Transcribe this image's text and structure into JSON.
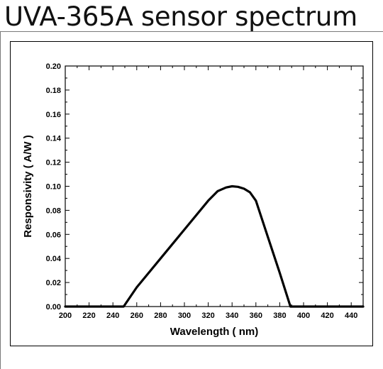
{
  "page": {
    "title": "UVA-365A sensor spectrum"
  },
  "chart_data": {
    "type": "line",
    "title": "",
    "xlabel": "Wavelength ( nm)",
    "ylabel": "Responsivity ( A/W )",
    "xlim": [
      200,
      450
    ],
    "ylim": [
      0.0,
      0.2
    ],
    "x_ticks": [
      200,
      220,
      240,
      260,
      280,
      300,
      320,
      340,
      360,
      380,
      400,
      420,
      440
    ],
    "y_ticks": [
      0.0,
      0.02,
      0.04,
      0.06,
      0.08,
      0.1,
      0.12,
      0.14,
      0.16,
      0.18,
      0.2
    ],
    "x_tick_labels": [
      "200",
      "220",
      "240",
      "260",
      "280",
      "300",
      "320",
      "340",
      "360",
      "380",
      "400",
      "420",
      "440"
    ],
    "y_tick_labels": [
      "0.00",
      "0.02",
      "0.04",
      "0.06",
      "0.08",
      "0.10",
      "0.12",
      "0.14",
      "0.16",
      "0.18",
      "0.20"
    ],
    "grid": false,
    "series": [
      {
        "color": "#000000",
        "x": [
          200,
          249,
          260,
          280,
          300,
          320,
          328,
          335,
          340,
          345,
          350,
          355,
          360,
          370,
          380,
          389,
          400,
          450
        ],
        "y": [
          0.0,
          0.0,
          0.016,
          0.04,
          0.064,
          0.088,
          0.096,
          0.099,
          0.1,
          0.0995,
          0.098,
          0.095,
          0.088,
          0.058,
          0.028,
          0.0,
          0.0,
          0.0
        ]
      }
    ]
  }
}
